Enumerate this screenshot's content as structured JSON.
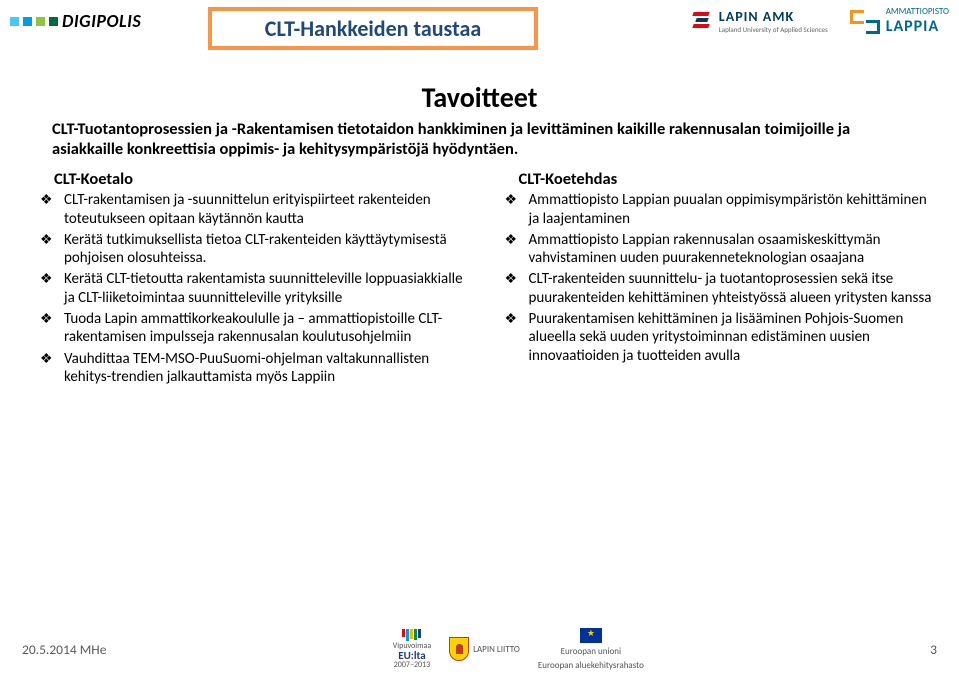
{
  "header": {
    "logo_left": {
      "text": "DIGIPOLIS",
      "dot_colors": [
        "#44c8f5",
        "#009fe3",
        "#8cc63f",
        "#006b3f"
      ]
    },
    "title_box": {
      "text": "CLT-Hankkeiden taustaa",
      "border_color": "#f79646",
      "text_color": "#1f497d"
    },
    "lapin_amk": {
      "name": "LAPIN AMK",
      "sub": "Lapland University of Applied Sciences"
    },
    "lappia": {
      "small": "AMMATTIOPISTO",
      "name": "LAPPIA"
    }
  },
  "subtitle": "Tavoitteet",
  "intro": "CLT-Tuotantoprosessien ja -Rakentamisen tietotaidon hankkiminen ja levittäminen kaikille rakennusalan toimijoille ja asiakkaille konkreettisia oppimis- ja kehitysympäristöjä hyödyntäen.",
  "left_col": {
    "title": "CLT-Koetalo",
    "items": [
      "CLT-rakentamisen ja -suunnittelun erityispiirteet rakenteiden toteutukseen opitaan käytännön kautta",
      "Kerätä tutkimuksellista tietoa CLT-rakenteiden käyttäytymisestä pohjoisen olosuhteissa.",
      "Kerätä CLT-tietoutta rakentamista suunnitteleville loppuasiakkialle ja CLT-liiketoimintaa suunnitteleville yrityksille",
      "Tuoda Lapin ammattikorkeakoululle ja – ammattiopistoille CLT-rakentamisen impulsseja rakennusalan koulutusohjelmiin",
      "Vauhdittaa TEM-MSO-PuuSuomi-ohjelman valtakunnallisten kehitys-trendien jalkauttamista myös Lappiin"
    ]
  },
  "right_col": {
    "title": "CLT-Koetehdas",
    "items": [
      "Ammattiopisto Lappian puualan oppimisympäristön kehittäminen ja laajentaminen",
      "Ammattiopisto Lappian rakennusalan osaamiskeskittymän vahvistaminen uuden puurakenneteknologian osaajana",
      "CLT-rakenteiden suunnittelu- ja tuotantoprosessien sekä itse puurakenteiden kehittäminen yhteistyössä alueen yritysten kanssa",
      "Puurakentamisen kehittäminen ja lisääminen Pohjois-Suomen alueella sekä uuden yritystoiminnan edistäminen uusien innovaatioiden ja tuotteiden avulla"
    ]
  },
  "footer": {
    "left": "20.5.2014 MHe",
    "vipu": {
      "l1": "Vipuvoimaa",
      "l2": "EU:lta",
      "l3": "2007–2013"
    },
    "liitto": "LAPIN LIITTO",
    "eu": {
      "l1": "Euroopan unioni",
      "l2": "Euroopan aluekehitysrahasto"
    },
    "page": "3"
  },
  "colors": {
    "accent_orange": "#f79646",
    "accent_navy": "#1f497d",
    "text": "#000000",
    "footer_text": "#595959"
  }
}
